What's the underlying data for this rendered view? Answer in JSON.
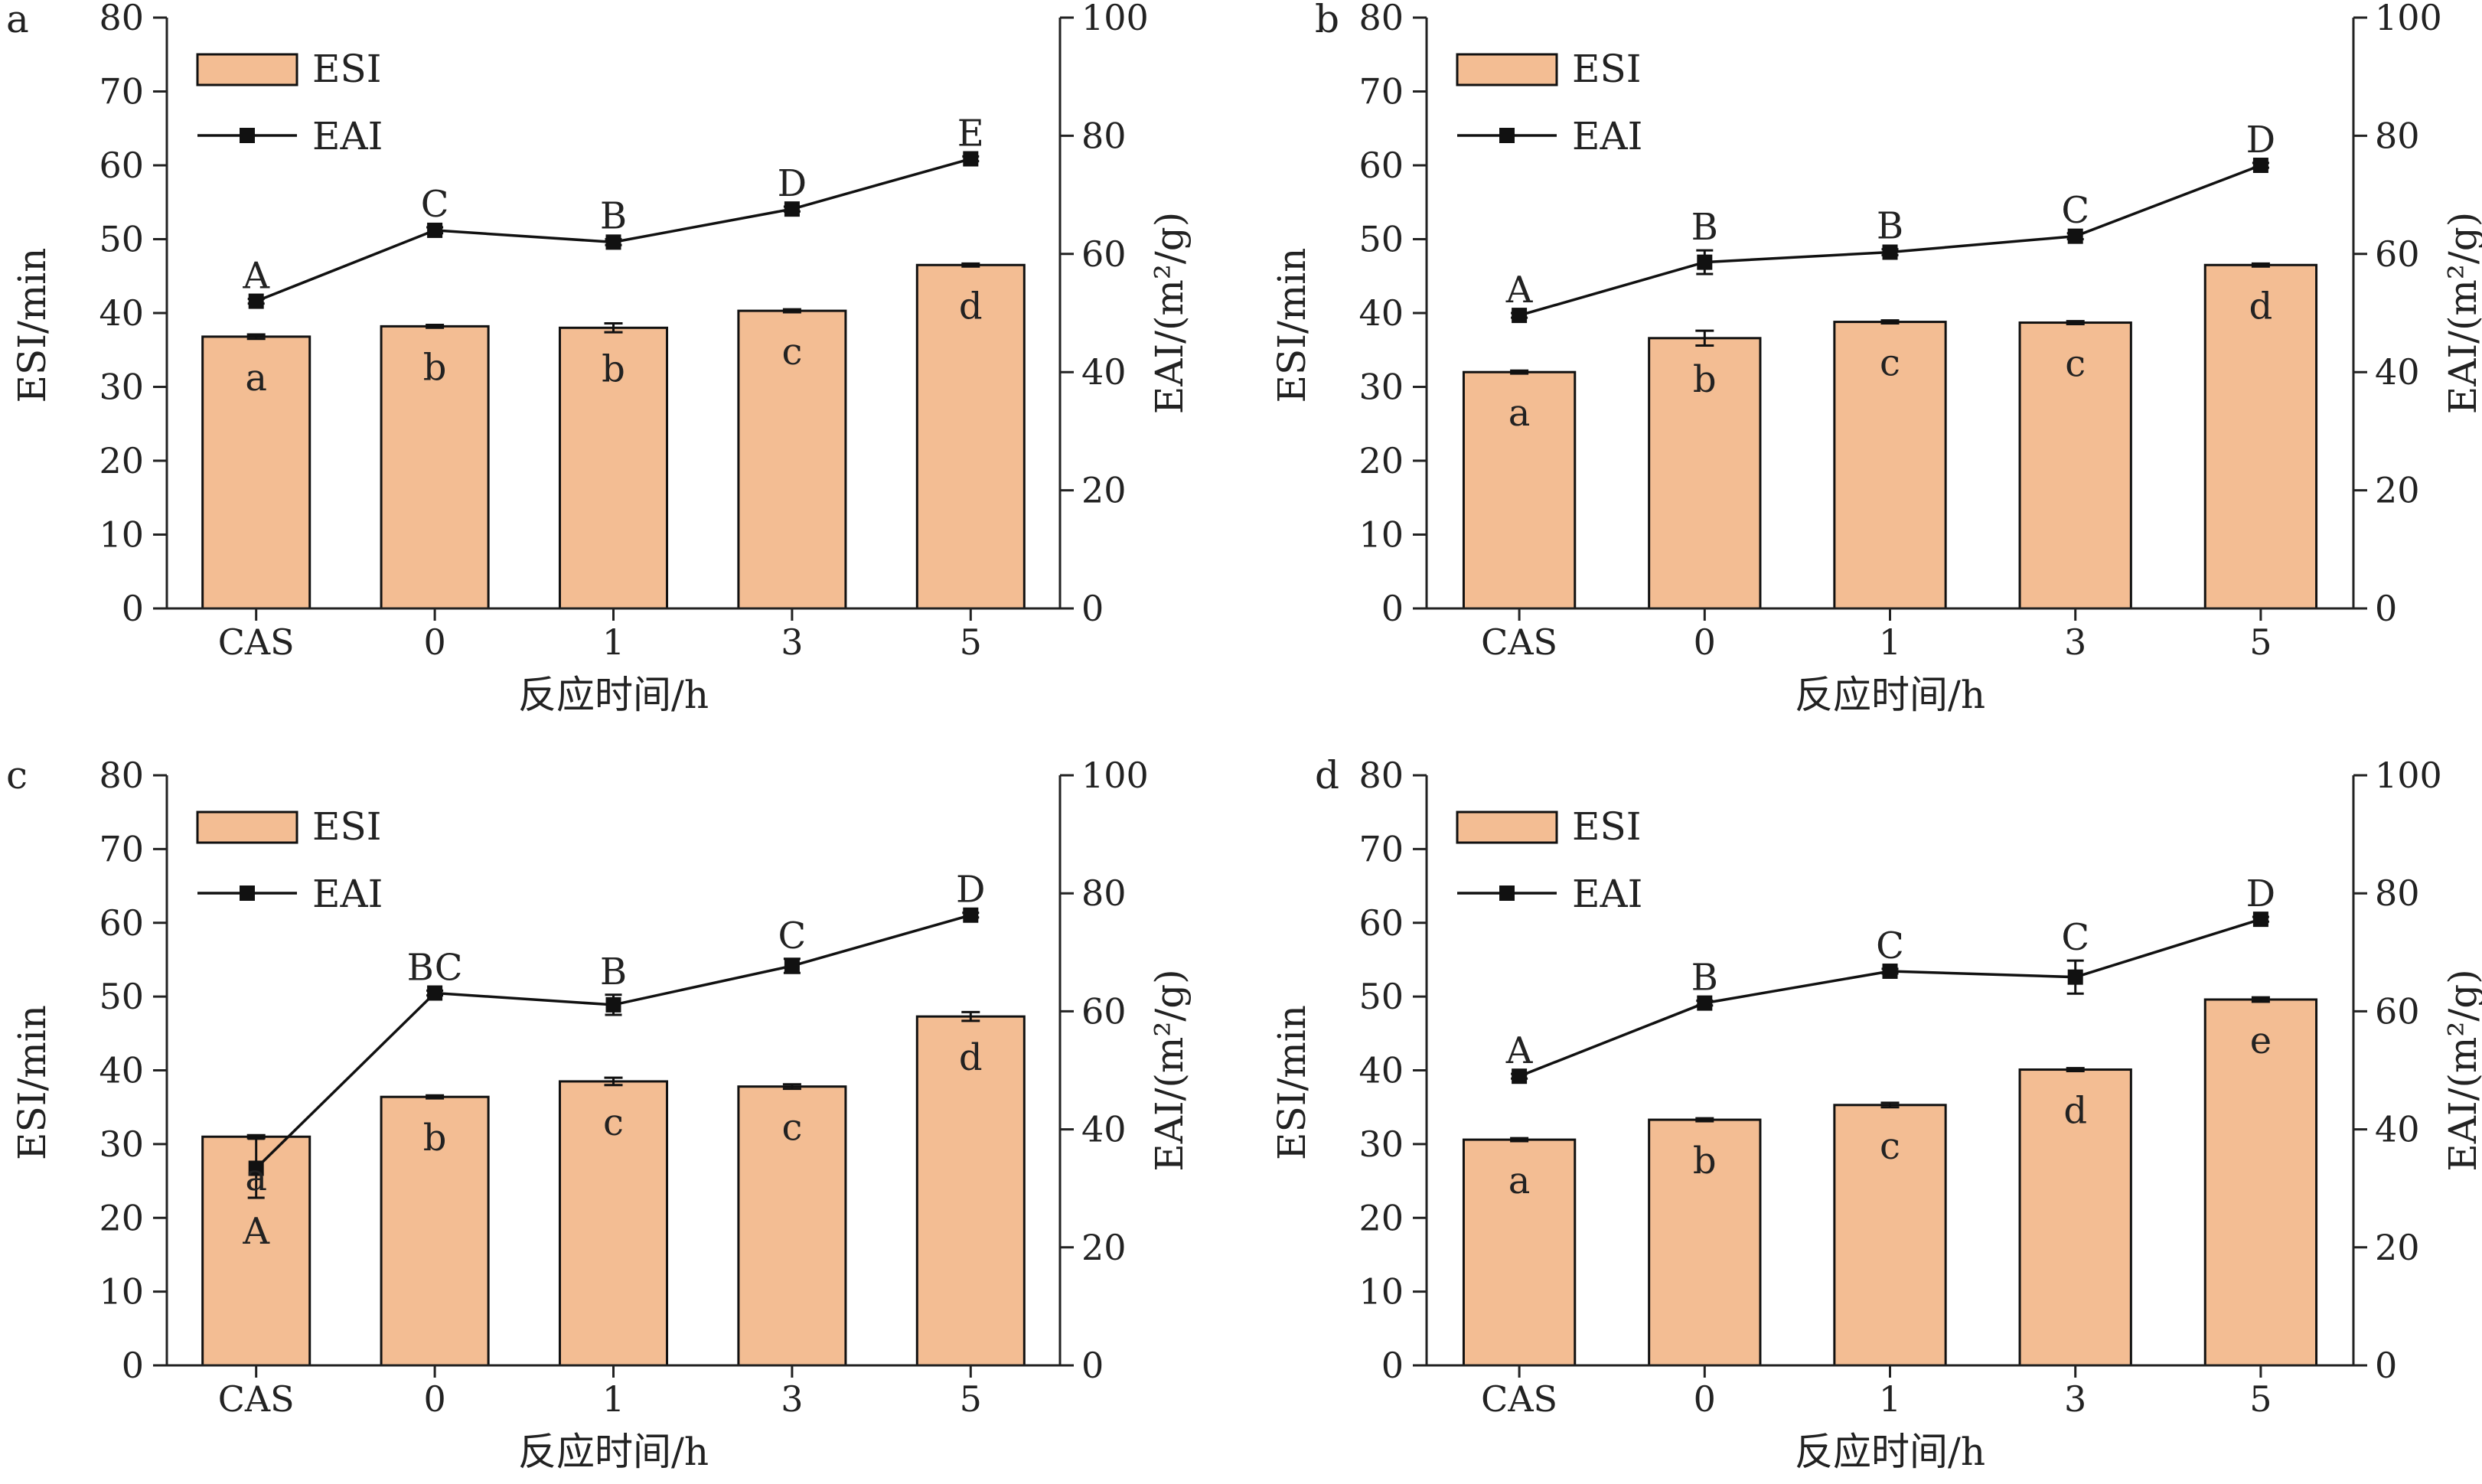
{
  "chart_data": [
    {
      "panel": "a",
      "type": "bar",
      "categories": [
        "CAS",
        "0",
        "1",
        "3",
        "5"
      ],
      "xlabel": "反应时间/h",
      "ylabel": "ESI/min",
      "y2label": "EAI/(m²/g)",
      "ylim": [
        0,
        80
      ],
      "y2lim": [
        0,
        100
      ],
      "yticks": [
        0,
        10,
        20,
        30,
        40,
        50,
        60,
        70,
        80
      ],
      "y2ticks": [
        0,
        20,
        40,
        60,
        80,
        100
      ],
      "legend": "top-left",
      "series": [
        {
          "name": "ESI",
          "type": "bar",
          "axis": "left",
          "values": [
            36.8,
            38.2,
            38.0,
            40.3,
            46.5
          ],
          "errors": [
            0.3,
            0.2,
            0.6,
            0.2,
            0.2
          ],
          "labels": [
            "a",
            "b",
            "b",
            "c",
            "d"
          ]
        },
        {
          "name": "EAI",
          "type": "line",
          "axis": "right",
          "values": [
            52.0,
            64.0,
            62.0,
            67.6,
            76.1
          ],
          "errors": [
            0.4,
            0.5,
            0.5,
            0.4,
            0.4
          ],
          "labels": [
            "A",
            "C",
            "B",
            "D",
            "E"
          ]
        }
      ]
    },
    {
      "panel": "b",
      "type": "bar",
      "categories": [
        "CAS",
        "0",
        "1",
        "3",
        "5"
      ],
      "xlabel": "反应时间/h",
      "ylabel": "ESI/min",
      "y2label": "EAI/(m²/g)",
      "ylim": [
        0,
        80
      ],
      "y2lim": [
        0,
        100
      ],
      "yticks": [
        0,
        10,
        20,
        30,
        40,
        50,
        60,
        70,
        80
      ],
      "y2ticks": [
        0,
        20,
        40,
        60,
        80,
        100
      ],
      "legend": "top-left",
      "series": [
        {
          "name": "ESI",
          "type": "bar",
          "axis": "left",
          "values": [
            32.0,
            36.6,
            38.8,
            38.7,
            46.5
          ],
          "errors": [
            0.2,
            1.0,
            0.2,
            0.2,
            0.2
          ],
          "labels": [
            "a",
            "b",
            "c",
            "c",
            "d"
          ]
        },
        {
          "name": "EAI",
          "type": "line",
          "axis": "right",
          "values": [
            49.6,
            58.6,
            60.3,
            63.0,
            75.0
          ],
          "errors": [
            0.4,
            2.0,
            0.5,
            0.5,
            0.4
          ],
          "labels": [
            "A",
            "B",
            "B",
            "C",
            "D"
          ]
        }
      ]
    },
    {
      "panel": "c",
      "type": "bar",
      "categories": [
        "CAS",
        "0",
        "1",
        "3",
        "5"
      ],
      "xlabel": "反应时间/h",
      "ylabel": "ESI/min",
      "y2label": "EAI/(m²/g)",
      "ylim": [
        0,
        80
      ],
      "y2lim": [
        0,
        100
      ],
      "yticks": [
        0,
        10,
        20,
        30,
        40,
        50,
        60,
        70,
        80
      ],
      "y2ticks": [
        0,
        20,
        40,
        60,
        80,
        100
      ],
      "legend": "top-left",
      "series": [
        {
          "name": "ESI",
          "type": "bar",
          "axis": "left",
          "values": [
            31.0,
            36.4,
            38.5,
            37.8,
            47.3
          ],
          "errors": [
            0.2,
            0.2,
            0.5,
            0.3,
            0.6
          ],
          "labels": [
            "a",
            "b",
            "c",
            "c",
            "d"
          ]
        },
        {
          "name": "EAI",
          "type": "line",
          "axis": "right",
          "values": [
            33.4,
            63.1,
            61.1,
            67.7,
            76.3
          ],
          "errors": [
            5.0,
            0.4,
            1.7,
            1.2,
            0.4
          ],
          "labels": [
            "A",
            "BC",
            "B",
            "C",
            "D"
          ]
        }
      ]
    },
    {
      "panel": "d",
      "type": "bar",
      "categories": [
        "CAS",
        "0",
        "1",
        "3",
        "5"
      ],
      "xlabel": "反应时间/h",
      "ylabel": "ESI/min",
      "y2label": "EAI/(m²/g)",
      "ylim": [
        0,
        80
      ],
      "y2lim": [
        0,
        100
      ],
      "yticks": [
        0,
        10,
        20,
        30,
        40,
        50,
        60,
        70,
        80
      ],
      "y2ticks": [
        0,
        20,
        40,
        60,
        80,
        100
      ],
      "legend": "top-left",
      "series": [
        {
          "name": "ESI",
          "type": "bar",
          "axis": "left",
          "values": [
            30.6,
            33.3,
            35.3,
            40.1,
            49.6
          ],
          "errors": [
            0.2,
            0.2,
            0.3,
            0.2,
            0.3
          ],
          "labels": [
            "a",
            "b",
            "c",
            "d",
            "e"
          ]
        },
        {
          "name": "EAI",
          "type": "line",
          "axis": "right",
          "values": [
            49.0,
            61.4,
            66.8,
            65.8,
            75.6
          ],
          "errors": [
            0.4,
            0.4,
            0.4,
            2.8,
            0.4
          ],
          "labels": [
            "A",
            "B",
            "C",
            "C",
            "D"
          ]
        }
      ]
    }
  ],
  "colors": {
    "bar_fill": "#f3bd93",
    "bar_stroke": "#111111",
    "line": "#111111",
    "marker": "#111111",
    "axis": "#222222",
    "text": "#222222"
  }
}
